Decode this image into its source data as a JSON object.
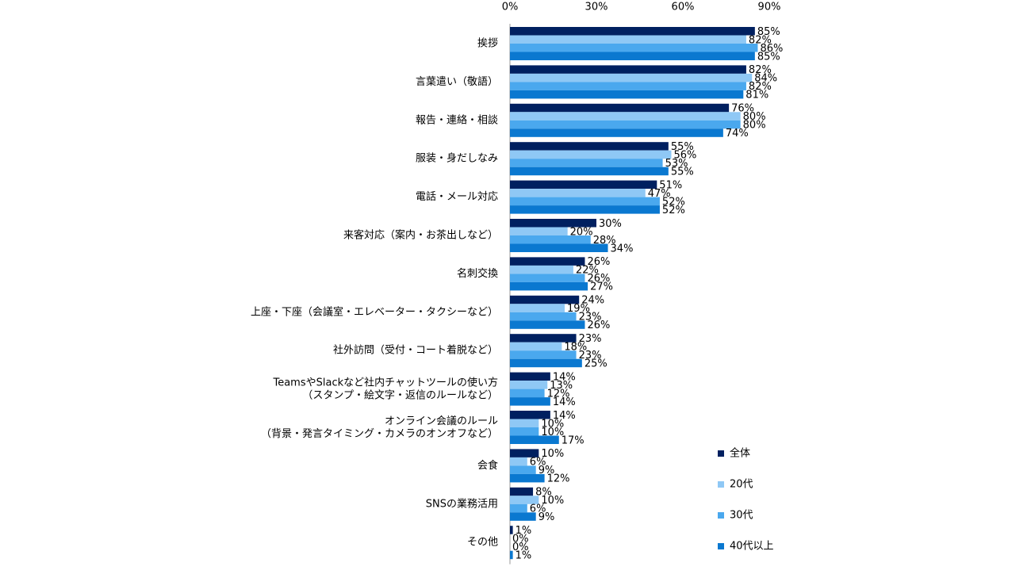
{
  "chart_data": {
    "type": "hbar",
    "categories": [
      "挨拶",
      "言葉遣い（敬語）",
      "報告・連絡・相談",
      "服装・身だしなみ",
      "電話・メール対応",
      "来客対応（案内・お茶出しなど）",
      "名刺交換",
      "上座・下座（会議室・エレベーター・タクシーなど）",
      "社外訪問（受付・コート着脱など）",
      "TeamsやSlackなど社内チャットツールの使い方\n（スタンプ・絵文字・返信のルールなど）",
      "オンライン会議のルール\n（背景・発言タイミング・カメラのオンオフなど）",
      "会食",
      "SNSの業務活用",
      "その他"
    ],
    "series": [
      {
        "name": "全体",
        "color": "#002060",
        "values": [
          85,
          82,
          76,
          55,
          51,
          30,
          26,
          24,
          23,
          14,
          14,
          10,
          8,
          1
        ],
        "value_labels": [
          "85%",
          "82%",
          "76%",
          "55%",
          "51%",
          "30%",
          "26%",
          "24%",
          "23%",
          "14%",
          "14%",
          "10%",
          "8%",
          "1%"
        ]
      },
      {
        "name": "20代",
        "color": "#8fc8f5",
        "values": [
          82,
          84,
          80,
          56,
          47,
          20,
          22,
          19,
          18,
          13,
          10,
          6,
          10,
          0
        ],
        "value_labels": [
          "82%",
          "84%",
          "80%",
          "56%",
          "47%",
          "20%",
          "22%",
          "19%",
          "18%",
          "13%",
          "10%",
          "6%",
          "10%",
          "0%"
        ]
      },
      {
        "name": "30代",
        "color": "#4aa8ee",
        "values": [
          86,
          82,
          80,
          53,
          52,
          28,
          26,
          23,
          23,
          12,
          10,
          9,
          6,
          0
        ],
        "value_labels": [
          "86%",
          "82%",
          "80%",
          "53%",
          "52%",
          "28%",
          "26%",
          "23%",
          "23%",
          "12%",
          "10%",
          "9%",
          "6%",
          "0%"
        ]
      },
      {
        "name": "40代以上",
        "color": "#0a78d0",
        "values": [
          85,
          81,
          74,
          55,
          52,
          34,
          27,
          26,
          25,
          14,
          17,
          12,
          9,
          1
        ],
        "value_labels": [
          "85%",
          "81%",
          "74%",
          "55%",
          "52%",
          "34%",
          "27%",
          "26%",
          "25%",
          "14%",
          "17%",
          "12%",
          "9%",
          "1%"
        ]
      }
    ],
    "xlim": [
      0,
      90
    ],
    "xticks": [
      {
        "value": 0,
        "label": "0%"
      },
      {
        "value": 30,
        "label": "30%"
      },
      {
        "value": 60,
        "label": "60%"
      },
      {
        "value": 90,
        "label": "90%"
      }
    ],
    "grid": false,
    "legend": "right"
  }
}
